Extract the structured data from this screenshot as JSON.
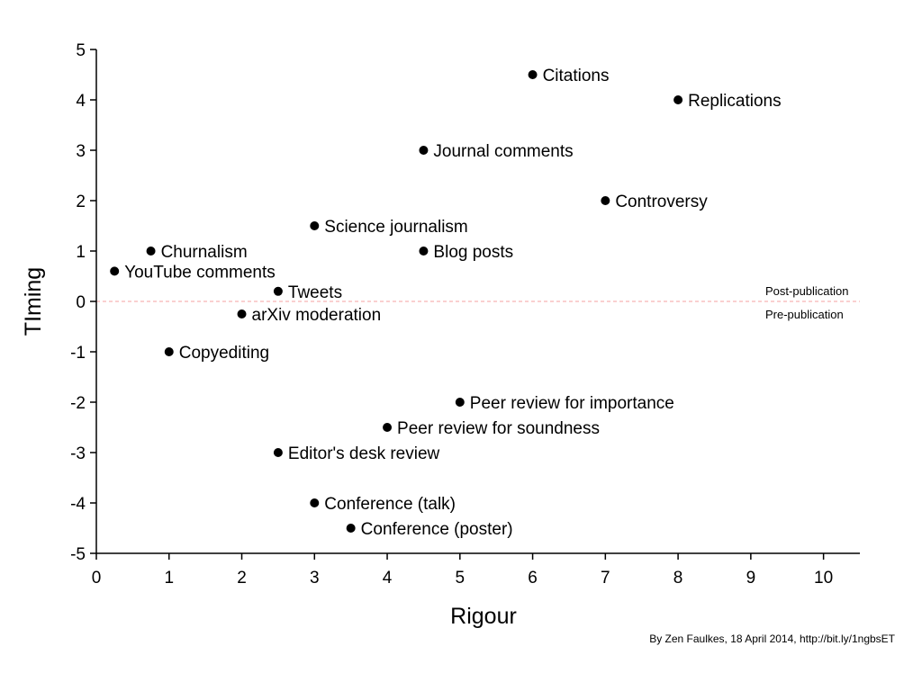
{
  "chart_data": {
    "type": "scatter",
    "xlabel": "Rigour",
    "ylabel": "TIming",
    "xlim": [
      0,
      10.5
    ],
    "ylim": [
      -5,
      5
    ],
    "xticks": [
      0,
      1,
      2,
      3,
      4,
      5,
      6,
      7,
      8,
      9,
      10
    ],
    "yticks": [
      5,
      4,
      3,
      2,
      1,
      0,
      -1,
      -2,
      -3,
      -4,
      -5
    ],
    "grid": false,
    "points": [
      {
        "label": "Citations",
        "x": 6,
        "y": 4.5
      },
      {
        "label": "Replications",
        "x": 8,
        "y": 4
      },
      {
        "label": "Journal comments",
        "x": 4.5,
        "y": 3
      },
      {
        "label": "Controversy",
        "x": 7,
        "y": 2
      },
      {
        "label": "Science journalism",
        "x": 3,
        "y": 1.5
      },
      {
        "label": "Churnalism",
        "x": 0.75,
        "y": 1
      },
      {
        "label": "Blog posts",
        "x": 4.5,
        "y": 1
      },
      {
        "label": "YouTube comments",
        "x": 0.25,
        "y": 0.6
      },
      {
        "label": "Tweets",
        "x": 2.5,
        "y": 0.2
      },
      {
        "label": "arXiv moderation",
        "x": 2,
        "y": -0.25
      },
      {
        "label": "Copyediting",
        "x": 1,
        "y": -1
      },
      {
        "label": "Peer review for importance",
        "x": 5,
        "y": -2
      },
      {
        "label": "Peer review for soundness",
        "x": 4,
        "y": -2.5
      },
      {
        "label": "Editor's desk review",
        "x": 2.5,
        "y": -3
      },
      {
        "label": "Conference (talk)",
        "x": 3,
        "y": -4
      },
      {
        "label": "Conference (poster)",
        "x": 3.5,
        "y": -4.5
      }
    ],
    "reference_line": {
      "y": 0,
      "color": "#f4a0a0",
      "style": "dashed",
      "label_above": "Post-publication",
      "label_below": "Pre-publication"
    },
    "point_color": "#000000"
  },
  "credit": "By Zen Faulkes, 18 April 2014, http://bit.ly/1ngbsET"
}
